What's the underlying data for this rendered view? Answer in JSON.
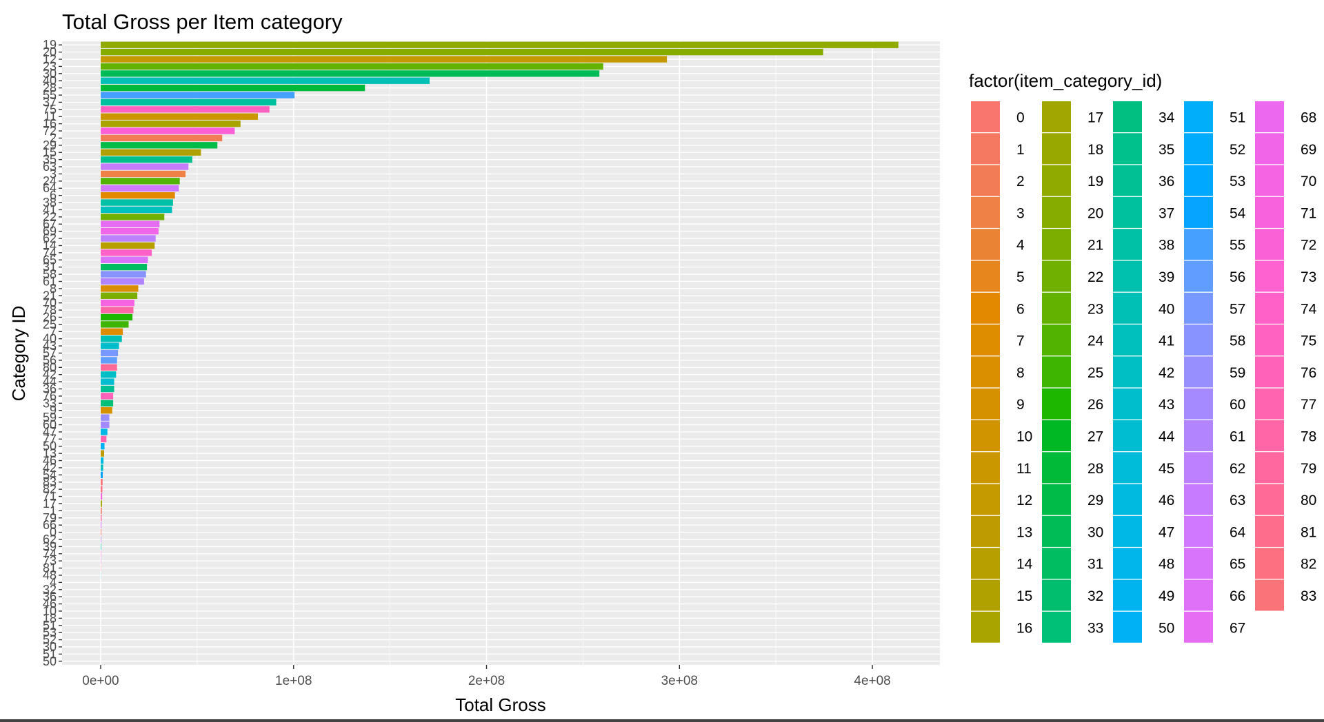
{
  "chart_data": {
    "type": "bar",
    "orientation": "horizontal",
    "title": "Total Gross per Item category",
    "xlabel": "Total Gross",
    "ylabel": "Category ID",
    "xlim": [
      -20000000,
      435000000
    ],
    "x_ticks": [
      0,
      100000000,
      200000000,
      300000000,
      400000000
    ],
    "x_tick_labels": [
      "0e+00",
      "1e+08",
      "2e+08",
      "3e+08",
      "4e+08"
    ],
    "grid": true,
    "legend_position": "right",
    "legend_title": "factor(item_category_id)",
    "categories": [
      "19",
      "20",
      "12",
      "23",
      "30",
      "40",
      "28",
      "55",
      "37",
      "75",
      "11",
      "16",
      "72",
      "2",
      "29",
      "15",
      "35",
      "63",
      "3",
      "24",
      "64",
      "6",
      "38",
      "41",
      "22",
      "67",
      "69",
      "62",
      "14",
      "74",
      "65",
      "31",
      "58",
      "61",
      "8",
      "21",
      "70",
      "78",
      "26",
      "25",
      "7",
      "40",
      "43",
      "57",
      "56",
      "80",
      "42",
      "44",
      "36",
      "76",
      "33",
      "9",
      "59",
      "60",
      "47",
      "77",
      "50",
      "13",
      "46",
      "42",
      "54",
      "83",
      "82",
      "71",
      "17",
      "1",
      "79",
      "66",
      "0",
      "62",
      "39",
      "74",
      "73",
      "81",
      "48",
      "4",
      "32",
      "36",
      "46",
      "10",
      "18",
      "51",
      "53",
      "52",
      "30",
      "51",
      "50"
    ],
    "values": [
      413500000,
      374500000,
      293500000,
      260500000,
      258500000,
      170500000,
      137000000,
      100500000,
      91000000,
      87500000,
      81500000,
      72500000,
      69500000,
      63000000,
      60500000,
      52000000,
      47500000,
      45500000,
      44000000,
      41000000,
      40500000,
      38500000,
      37500000,
      37000000,
      33000000,
      30500000,
      30000000,
      28500000,
      28000000,
      26500000,
      24500000,
      24000000,
      23500000,
      22500000,
      19500000,
      19000000,
      17500000,
      17000000,
      16500000,
      14500000,
      11500000,
      11000000,
      9500000,
      9000000,
      8500000,
      8500000,
      8000000,
      7000000,
      7000000,
      6500000,
      6500000,
      6000000,
      4500000,
      4500000,
      3500000,
      3000000,
      2000000,
      1800000,
      1500000,
      1300000,
      1100000,
      1000000,
      900000,
      800000,
      700000,
      600000,
      500000,
      400000,
      350000,
      300000,
      250000,
      200000,
      150000,
      100000,
      60000,
      0,
      0,
      0,
      0,
      0,
      0,
      0,
      0,
      0,
      0,
      0,
      0
    ],
    "legend_entries": [
      "0",
      "1",
      "2",
      "3",
      "4",
      "5",
      "6",
      "7",
      "8",
      "9",
      "10",
      "11",
      "12",
      "13",
      "14",
      "15",
      "16",
      "17",
      "18",
      "19",
      "20",
      "21",
      "22",
      "23",
      "24",
      "25",
      "26",
      "27",
      "28",
      "29",
      "30",
      "31",
      "32",
      "33",
      "34",
      "35",
      "36",
      "37",
      "38",
      "39",
      "40",
      "41",
      "42",
      "43",
      "44",
      "45",
      "46",
      "47",
      "48",
      "49",
      "50",
      "51",
      "52",
      "53",
      "54",
      "55",
      "56",
      "57",
      "58",
      "59",
      "60",
      "61",
      "62",
      "63",
      "64",
      "65",
      "66",
      "67",
      "68",
      "69",
      "70",
      "71",
      "72",
      "73",
      "74",
      "75",
      "76",
      "77",
      "78",
      "79",
      "80",
      "81",
      "82",
      "83"
    ]
  },
  "colors": {
    "panel_background": "#EBEBEB",
    "grid_line": "#FFFFFF",
    "tick_text": "#4D4D4D",
    "palette_rule": "ggplot2 hue palette, 84 levels"
  }
}
